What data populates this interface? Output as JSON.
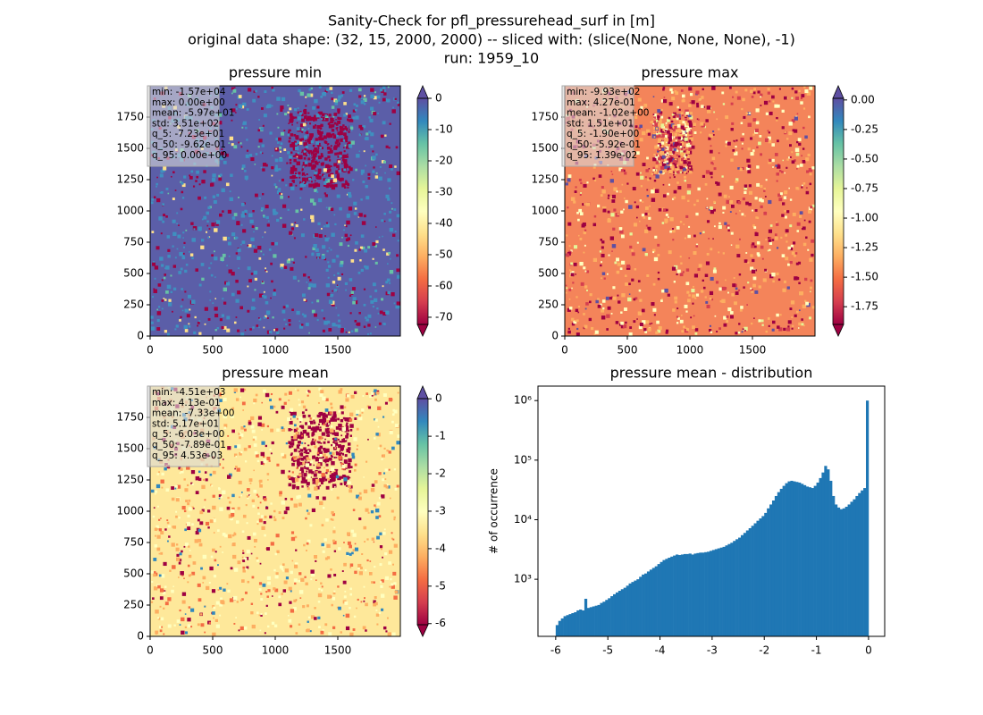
{
  "figure": {
    "title_lines": [
      "Sanity-Check for pfl_pressurehead_surf in [m]",
      "original data shape: (32, 15, 2000, 2000) -- sliced with: (slice(None, None, None), -1)",
      "run: 1959_10"
    ]
  },
  "chart_data": [
    {
      "type": "heatmap",
      "title": "pressure min",
      "xlim": [
        0,
        2000
      ],
      "ylim": [
        0,
        2000
      ],
      "xticks": [
        0,
        500,
        1000,
        1500
      ],
      "yticks": [
        0,
        250,
        500,
        750,
        1000,
        1250,
        1500,
        1750
      ],
      "colormap": "Spectral",
      "clim": [
        -72.3,
        0
      ],
      "cticks": [
        0,
        -10,
        -20,
        -30,
        -40,
        -50,
        -60,
        -70
      ],
      "stats": [
        "min: -1.57e+04",
        "max: 0.00e+00",
        "mean: -5.97e+01",
        "std: 3.51e+02",
        "q_5: -7.23e+01",
        "q_50: -9.62e-01",
        "q_95: 0.00e+00"
      ]
    },
    {
      "type": "heatmap",
      "title": "pressure max",
      "xlim": [
        0,
        2000
      ],
      "ylim": [
        0,
        2000
      ],
      "xticks": [
        0,
        500,
        1000,
        1500
      ],
      "yticks": [
        0,
        250,
        500,
        750,
        1000,
        1250,
        1500,
        1750
      ],
      "colormap": "Spectral",
      "clim": [
        -1.9,
        0.0139
      ],
      "cticks": [
        {
          "value": 0,
          "label": "0.00"
        },
        {
          "value": -0.25,
          "label": "-0.25"
        },
        {
          "value": -0.5,
          "label": "-0.50"
        },
        {
          "value": -0.75,
          "label": "-0.75"
        },
        {
          "value": -1,
          "label": "-1.00"
        },
        {
          "value": -1.25,
          "label": "-1.25"
        },
        {
          "value": -1.5,
          "label": "-1.50"
        },
        {
          "value": -1.75,
          "label": "-1.75"
        }
      ],
      "stats": [
        "min: -9.93e+02",
        "max: 4.27e-01",
        "mean: -1.02e+00",
        "std: 1.51e+01",
        "q_5: -1.90e+00",
        "q_50: -5.92e-01",
        "q_95: 1.39e-02"
      ]
    },
    {
      "type": "heatmap",
      "title": "pressure mean",
      "xlim": [
        0,
        2000
      ],
      "ylim": [
        0,
        2000
      ],
      "xticks": [
        0,
        500,
        1000,
        1500
      ],
      "yticks": [
        0,
        250,
        500,
        750,
        1000,
        1250,
        1500,
        1750
      ],
      "colormap": "Spectral",
      "clim": [
        -6.03,
        0.00453
      ],
      "cticks": [
        0,
        -1,
        -2,
        -3,
        -4,
        -5,
        -6
      ],
      "stats": [
        "min: -4.51e+03",
        "max: 4.13e-01",
        "mean: -7.33e+00",
        "std: 5.17e+01",
        "q_5: -6.03e+00",
        "q_50: -7.89e-01",
        "q_95: 4.53e-03"
      ]
    },
    {
      "type": "histogram",
      "title": "pressure mean - distribution",
      "ylabel": "# of occurrence",
      "color": "#1f77b4",
      "log_y": true,
      "xlim": [
        -6.34,
        0.31
      ],
      "ylim": [
        110,
        1750000
      ],
      "xticks": [
        -6,
        -5,
        -4,
        -3,
        -2,
        -1,
        0
      ],
      "yticks": [
        {
          "value": 1000,
          "label": "10³"
        },
        {
          "value": 10000,
          "label": "10⁴"
        },
        {
          "value": 100000,
          "label": "10⁵"
        },
        {
          "value": 1000000,
          "label": "10⁶"
        }
      ],
      "bins": [
        -6.0,
        -5.95,
        -5.9,
        -5.85,
        -5.8,
        -5.75,
        -5.7,
        -5.65,
        -5.6,
        -5.55,
        -5.5,
        -5.45,
        -5.4,
        -5.35,
        -5.3,
        -5.25,
        -5.2,
        -5.15,
        -5.1,
        -5.05,
        -5.0,
        -4.95,
        -4.9,
        -4.85,
        -4.8,
        -4.75,
        -4.7,
        -4.65,
        -4.6,
        -4.55,
        -4.5,
        -4.45,
        -4.4,
        -4.35,
        -4.3,
        -4.25,
        -4.2,
        -4.15,
        -4.1,
        -4.05,
        -4.0,
        -3.95,
        -3.9,
        -3.85,
        -3.8,
        -3.75,
        -3.7,
        -3.65,
        -3.6,
        -3.55,
        -3.5,
        -3.45,
        -3.4,
        -3.35,
        -3.3,
        -3.25,
        -3.2,
        -3.15,
        -3.1,
        -3.05,
        -3.0,
        -2.95,
        -2.9,
        -2.85,
        -2.8,
        -2.75,
        -2.7,
        -2.65,
        -2.6,
        -2.55,
        -2.5,
        -2.45,
        -2.4,
        -2.35,
        -2.3,
        -2.25,
        -2.2,
        -2.15,
        -2.1,
        -2.05,
        -2.0,
        -1.95,
        -1.9,
        -1.85,
        -1.8,
        -1.75,
        -1.7,
        -1.65,
        -1.6,
        -1.55,
        -1.5,
        -1.45,
        -1.4,
        -1.35,
        -1.3,
        -1.25,
        -1.2,
        -1.15,
        -1.1,
        -1.05,
        -1.0,
        -0.95,
        -0.9,
        -0.85,
        -0.8,
        -0.75,
        -0.7,
        -0.65,
        -0.6,
        -0.55,
        -0.5,
        -0.45,
        -0.4,
        -0.35,
        -0.3,
        -0.25,
        -0.2,
        -0.15,
        -0.1,
        -0.05,
        0.0
      ],
      "values": [
        170,
        200,
        220,
        240,
        250,
        260,
        270,
        280,
        300,
        310,
        300,
        470,
        330,
        340,
        350,
        360,
        370,
        400,
        420,
        450,
        480,
        520,
        560,
        600,
        640,
        680,
        720,
        780,
        850,
        900,
        950,
        1000,
        1100,
        1200,
        1250,
        1350,
        1450,
        1550,
        1650,
        1800,
        1950,
        2100,
        2200,
        2300,
        2400,
        2500,
        2600,
        2550,
        2600,
        2650,
        2650,
        2700,
        2600,
        2700,
        2750,
        2800,
        2800,
        2850,
        2900,
        3000,
        3100,
        3200,
        3300,
        3400,
        3500,
        3700,
        3900,
        4100,
        4400,
        4700,
        5000,
        5500,
        6000,
        6600,
        7200,
        7900,
        8700,
        9600,
        10500,
        11500,
        13000,
        15500,
        18000,
        21000,
        25000,
        29000,
        33000,
        37000,
        41000,
        44000,
        45000,
        44000,
        43000,
        42000,
        40000,
        38000,
        36000,
        35000,
        34000,
        37000,
        42000,
        50000,
        62000,
        80000,
        70000,
        45000,
        25000,
        18000,
        16000,
        15000,
        15500,
        16500,
        18000,
        20000,
        22000,
        25000,
        28000,
        31000,
        34000,
        1000000
      ]
    }
  ]
}
